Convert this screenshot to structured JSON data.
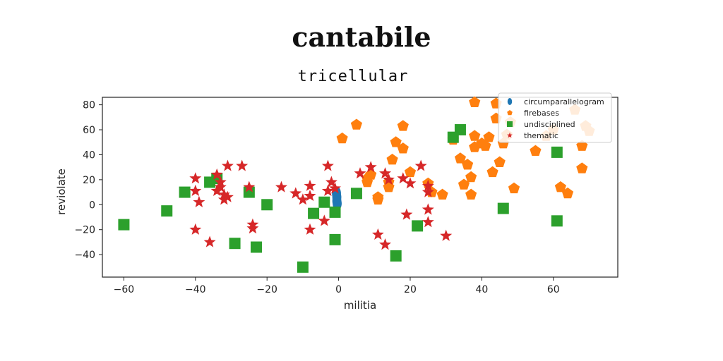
{
  "chart_data": {
    "type": "scatter",
    "title": "cantabile",
    "subtitle": "tricellular",
    "xlabel": "militia",
    "ylabel": "reviolate",
    "xlim": [
      -66,
      78
    ],
    "ylim": [
      -58,
      86
    ],
    "xticks": [
      -60,
      -40,
      -20,
      0,
      20,
      40,
      60
    ],
    "yticks": [
      -40,
      -20,
      0,
      20,
      40,
      60,
      80
    ],
    "grid": false,
    "legend_position": "top-right",
    "series": [
      {
        "name": "circumparallelogram",
        "marker": "circle",
        "color": "#1f77b4",
        "points": [
          [
            -0.5,
            6
          ],
          [
            -0.5,
            3
          ],
          [
            -0.6,
            9
          ],
          [
            -0.4,
            1
          ]
        ]
      },
      {
        "name": "firebases",
        "marker": "pentagon",
        "color": "#ff7f0e",
        "points": [
          [
            1,
            53
          ],
          [
            5,
            64
          ],
          [
            8,
            18
          ],
          [
            8,
            21
          ],
          [
            9,
            24
          ],
          [
            11,
            4
          ],
          [
            11,
            6
          ],
          [
            14,
            18
          ],
          [
            14,
            14
          ],
          [
            15,
            36
          ],
          [
            16,
            50
          ],
          [
            18,
            63
          ],
          [
            18,
            45
          ],
          [
            20,
            26
          ],
          [
            25,
            17
          ],
          [
            26,
            10
          ],
          [
            29,
            8
          ],
          [
            32,
            52
          ],
          [
            34,
            37
          ],
          [
            35,
            16
          ],
          [
            36,
            32
          ],
          [
            37,
            8
          ],
          [
            37,
            22
          ],
          [
            38,
            55
          ],
          [
            38,
            82
          ],
          [
            38,
            46
          ],
          [
            40,
            49
          ],
          [
            41,
            47
          ],
          [
            42,
            54
          ],
          [
            43,
            26
          ],
          [
            44,
            81
          ],
          [
            44,
            69
          ],
          [
            45,
            34
          ],
          [
            46,
            49
          ],
          [
            47,
            56
          ],
          [
            48,
            66
          ],
          [
            49,
            13
          ],
          [
            55,
            43
          ],
          [
            58,
            55
          ],
          [
            60,
            60
          ],
          [
            62,
            14
          ],
          [
            64,
            9
          ],
          [
            66,
            76
          ],
          [
            68,
            29
          ],
          [
            68,
            47
          ],
          [
            69,
            63
          ],
          [
            70,
            59
          ]
        ]
      },
      {
        "name": "undisciplined",
        "marker": "square",
        "color": "#2ca02c",
        "points": [
          [
            -60,
            -16
          ],
          [
            -48,
            -5
          ],
          [
            -43,
            10
          ],
          [
            -36,
            18
          ],
          [
            -34,
            21
          ],
          [
            -29,
            -31
          ],
          [
            -25,
            10
          ],
          [
            -23,
            -34
          ],
          [
            -20,
            0
          ],
          [
            -10,
            -50
          ],
          [
            -7,
            -7
          ],
          [
            -4,
            2
          ],
          [
            -1,
            -6
          ],
          [
            -1,
            -28
          ],
          [
            5,
            9
          ],
          [
            16,
            -41
          ],
          [
            22,
            -17
          ],
          [
            32,
            54
          ],
          [
            34,
            60
          ],
          [
            46,
            -3
          ],
          [
            61,
            42
          ],
          [
            61,
            -13
          ]
        ]
      },
      {
        "name": "thematic",
        "marker": "star",
        "color": "#d62728",
        "points": [
          [
            -40,
            21
          ],
          [
            -40,
            11
          ],
          [
            -40,
            -20
          ],
          [
            -39,
            2
          ],
          [
            -36,
            -30
          ],
          [
            -34,
            24
          ],
          [
            -34,
            11
          ],
          [
            -33,
            18
          ],
          [
            -33,
            14
          ],
          [
            -32,
            4
          ],
          [
            -32,
            8
          ],
          [
            -31,
            6
          ],
          [
            -31,
            31
          ],
          [
            -27,
            31
          ],
          [
            -25,
            14
          ],
          [
            -24,
            -16
          ],
          [
            -24,
            -19
          ],
          [
            -16,
            14
          ],
          [
            -12,
            9
          ],
          [
            -10,
            4
          ],
          [
            -8,
            15
          ],
          [
            -8,
            7
          ],
          [
            -8,
            -20
          ],
          [
            -4,
            -13
          ],
          [
            -3,
            31
          ],
          [
            -3,
            11
          ],
          [
            -2,
            18
          ],
          [
            -1,
            13
          ],
          [
            6,
            25
          ],
          [
            9,
            30
          ],
          [
            11,
            -24
          ],
          [
            13,
            -32
          ],
          [
            13,
            25
          ],
          [
            14,
            20
          ],
          [
            18,
            21
          ],
          [
            19,
            -8
          ],
          [
            20,
            17
          ],
          [
            23,
            31
          ],
          [
            25,
            15
          ],
          [
            25,
            10
          ],
          [
            25,
            -4
          ],
          [
            25,
            -14
          ],
          [
            30,
            -25
          ]
        ]
      }
    ]
  }
}
